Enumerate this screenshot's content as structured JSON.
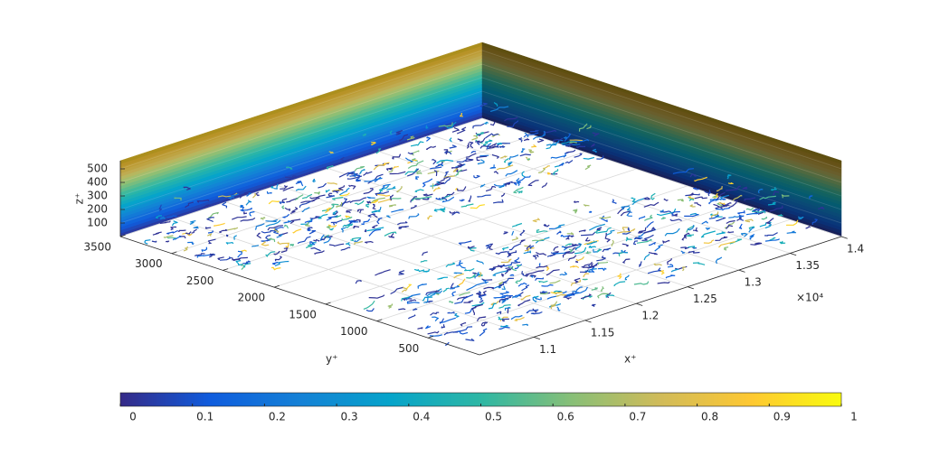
{
  "chart_data": {
    "type": "surface3d",
    "xlabel": "x⁺",
    "ylabel": "y⁺",
    "zlabel": "z⁺",
    "x_exponent_label": "×10⁴",
    "xlim": [
      10470,
      14000
    ],
    "ylim": [
      0,
      3500
    ],
    "zlim": [
      0,
      560
    ],
    "xticks": [
      {
        "value": 11000,
        "label": "1.1"
      },
      {
        "value": 11500,
        "label": "1.15"
      },
      {
        "value": 12000,
        "label": "1.2"
      },
      {
        "value": 12500,
        "label": "1.25"
      },
      {
        "value": 13000,
        "label": "1.3"
      },
      {
        "value": 13500,
        "label": "1.35"
      },
      {
        "value": 14000,
        "label": "1.4"
      }
    ],
    "yticks": [
      500,
      1000,
      1500,
      2000,
      2500,
      3000,
      3500
    ],
    "zticks": [
      100,
      200,
      300,
      400,
      500
    ],
    "grid": true,
    "colorbar": {
      "lim": [
        0,
        1
      ],
      "ticks": [
        0,
        0.1,
        0.2,
        0.3,
        0.4,
        0.5,
        0.6,
        0.7,
        0.8,
        0.9,
        1
      ],
      "colors": [
        "#352a87",
        "#0f5cdd",
        "#1481d6",
        "#06a4ca",
        "#2eb7a4",
        "#87bf77",
        "#d1bb59",
        "#fec832",
        "#f9fb0e"
      ]
    }
  }
}
